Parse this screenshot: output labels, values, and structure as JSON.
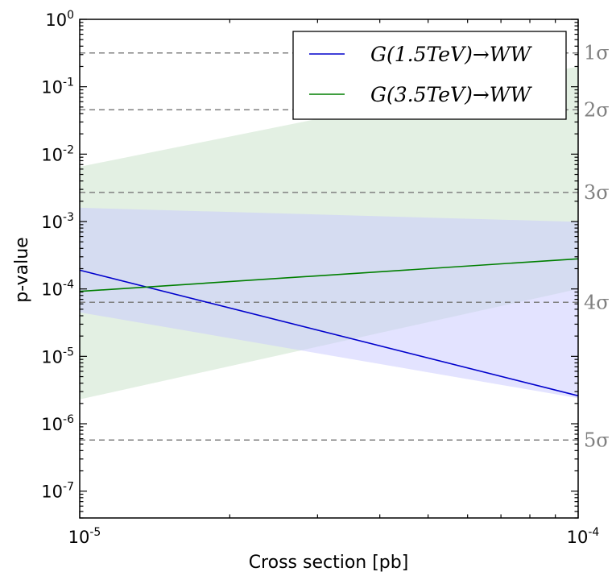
{
  "chart_data": {
    "type": "line",
    "xlabel": "Cross section [pb]",
    "ylabel": "p-value",
    "xscale": "log",
    "yscale": "log",
    "xlim": [
      1e-05,
      0.0001
    ],
    "ylim": [
      4e-08,
      1
    ],
    "x_ticks": [
      {
        "base": "10",
        "exp": "-5",
        "value": 1e-05
      },
      {
        "base": "10",
        "exp": "-4",
        "value": 0.0001
      }
    ],
    "y_ticks": [
      {
        "base": "10",
        "exp": "0",
        "value": 1
      },
      {
        "base": "10",
        "exp": "-1",
        "value": 0.1
      },
      {
        "base": "10",
        "exp": "-2",
        "value": 0.01
      },
      {
        "base": "10",
        "exp": "-3",
        "value": 0.001
      },
      {
        "base": "10",
        "exp": "-4",
        "value": 0.0001
      },
      {
        "base": "10",
        "exp": "-5",
        "value": 1e-05
      },
      {
        "base": "10",
        "exp": "-6",
        "value": 1e-06
      },
      {
        "base": "10",
        "exp": "-7",
        "value": 1e-07
      }
    ],
    "significance_lines": [
      {
        "label": "1σ",
        "p": 0.3173
      },
      {
        "label": "2σ",
        "p": 0.0455
      },
      {
        "label": "3σ",
        "p": 0.0027
      },
      {
        "label": "4σ",
        "p": 6.33e-05
      },
      {
        "label": "5σ",
        "p": 5.73e-07
      }
    ],
    "series": [
      {
        "name": "G(1.5TeV)→WW",
        "color": "#0000cc",
        "band_color": "#c8c8ff",
        "x": [
          1e-05,
          0.0001
        ],
        "y": [
          0.00019,
          2.6e-06
        ],
        "band_low": [
          4.5e-05,
          2.4e-06
        ],
        "band_high": [
          0.0016,
          0.00099
        ]
      },
      {
        "name": "G(3.5TeV)→WW",
        "color": "#007f00",
        "band_color": "#c8e2c8",
        "x": [
          1e-05,
          0.0001
        ],
        "y": [
          9.2e-05,
          0.00028
        ],
        "band_low": [
          2.3e-06,
          0.0001
        ],
        "band_high": [
          0.0065,
          0.2
        ]
      }
    ],
    "legend_position": "top-right",
    "grid": false
  }
}
